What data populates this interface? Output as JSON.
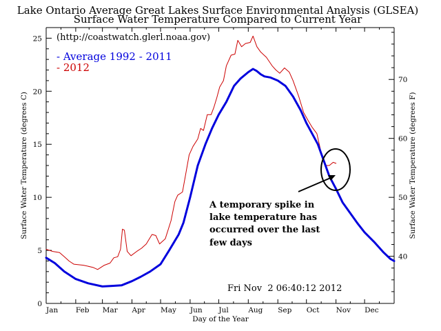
{
  "chart_data": {
    "type": "line",
    "title": "Lake Ontario Average Great Lakes Surface Environmental Analysis (GLSEA)",
    "subtitle": "Surface Water Temperature Compared to Current Year",
    "source": "(http://coastwatch.glerl.noaa.gov)",
    "xlabel": "Day of the Year",
    "ylabel_left": "Surface Water Temperature (degrees C)",
    "ylabel_right": "Surface Water Temperature (degrees F)",
    "xlim": [
      1,
      366
    ],
    "ylim": [
      0,
      26
    ],
    "ylim_right_F": [
      32,
      78.8
    ],
    "x_tick_labels": [
      "Jan",
      "Feb",
      "Mar",
      "Apr",
      "May",
      "Jun",
      "Jul",
      "Aug",
      "Sep",
      "Oct",
      "Nov",
      "Dec"
    ],
    "x_tick_days": [
      1,
      32,
      60,
      91,
      121,
      152,
      182,
      213,
      244,
      274,
      305,
      335
    ],
    "y_ticks_left": [
      0,
      5,
      10,
      15,
      20,
      25
    ],
    "y_ticks_right_F": [
      40,
      50,
      60,
      70
    ],
    "series": [
      {
        "name": "Average 1992 - 2011",
        "color": "#0000dd",
        "points": [
          [
            1,
            4.3
          ],
          [
            10,
            3.8
          ],
          [
            20,
            3.0
          ],
          [
            32,
            2.3
          ],
          [
            45,
            1.9
          ],
          [
            60,
            1.6
          ],
          [
            70,
            1.65
          ],
          [
            80,
            1.7
          ],
          [
            91,
            2.1
          ],
          [
            100,
            2.5
          ],
          [
            110,
            3.0
          ],
          [
            121,
            3.7
          ],
          [
            130,
            5.0
          ],
          [
            140,
            6.5
          ],
          [
            145,
            7.6
          ],
          [
            152,
            10.0
          ],
          [
            160,
            13.0
          ],
          [
            168,
            15.0
          ],
          [
            175,
            16.5
          ],
          [
            182,
            17.8
          ],
          [
            190,
            19.0
          ],
          [
            198,
            20.5
          ],
          [
            205,
            21.2
          ],
          [
            213,
            21.8
          ],
          [
            218,
            22.1
          ],
          [
            222,
            21.9
          ],
          [
            226,
            21.6
          ],
          [
            230,
            21.4
          ],
          [
            236,
            21.3
          ],
          [
            244,
            21.0
          ],
          [
            252,
            20.5
          ],
          [
            260,
            19.5
          ],
          [
            268,
            18.2
          ],
          [
            274,
            17.0
          ],
          [
            280,
            16.0
          ],
          [
            286,
            15.0
          ],
          [
            292,
            13.5
          ],
          [
            298,
            12.0
          ],
          [
            305,
            10.8
          ],
          [
            312,
            9.5
          ],
          [
            320,
            8.5
          ],
          [
            328,
            7.5
          ],
          [
            335,
            6.7
          ],
          [
            345,
            5.8
          ],
          [
            355,
            4.8
          ],
          [
            362,
            4.2
          ],
          [
            366,
            4.0
          ]
        ]
      },
      {
        "name": "2012",
        "color": "#cc0000",
        "points": [
          [
            1,
            5.1
          ],
          [
            8,
            4.9
          ],
          [
            15,
            4.8
          ],
          [
            20,
            4.4
          ],
          [
            25,
            4.0
          ],
          [
            30,
            3.7
          ],
          [
            40,
            3.6
          ],
          [
            50,
            3.4
          ],
          [
            55,
            3.2
          ],
          [
            62,
            3.6
          ],
          [
            68,
            3.8
          ],
          [
            72,
            4.3
          ],
          [
            76,
            4.4
          ],
          [
            79,
            5.1
          ],
          [
            81,
            7.0
          ],
          [
            83,
            6.9
          ],
          [
            86,
            4.9
          ],
          [
            90,
            4.5
          ],
          [
            96,
            4.9
          ],
          [
            101,
            5.2
          ],
          [
            106,
            5.6
          ],
          [
            112,
            6.5
          ],
          [
            116,
            6.4
          ],
          [
            120,
            5.6
          ],
          [
            126,
            6.1
          ],
          [
            132,
            7.8
          ],
          [
            136,
            9.6
          ],
          [
            139,
            10.2
          ],
          [
            144,
            10.5
          ],
          [
            147,
            12.0
          ],
          [
            151,
            14.0
          ],
          [
            155,
            14.8
          ],
          [
            160,
            15.5
          ],
          [
            163,
            16.5
          ],
          [
            166,
            16.3
          ],
          [
            170,
            17.8
          ],
          [
            174,
            17.8
          ],
          [
            177,
            18.5
          ],
          [
            180,
            19.4
          ],
          [
            183,
            20.4
          ],
          [
            187,
            21.0
          ],
          [
            190,
            22.4
          ],
          [
            195,
            23.4
          ],
          [
            199,
            23.5
          ],
          [
            202,
            24.8
          ],
          [
            206,
            24.2
          ],
          [
            210,
            24.5
          ],
          [
            215,
            24.6
          ],
          [
            218,
            25.2
          ],
          [
            222,
            24.2
          ],
          [
            226,
            23.7
          ],
          [
            232,
            23.2
          ],
          [
            238,
            22.4
          ],
          [
            242,
            22.0
          ],
          [
            246,
            21.7
          ],
          [
            251,
            22.2
          ],
          [
            256,
            21.8
          ],
          [
            260,
            21.0
          ],
          [
            266,
            19.5
          ],
          [
            271,
            18.0
          ],
          [
            276,
            17.2
          ],
          [
            280,
            16.6
          ],
          [
            285,
            16.0
          ],
          [
            290,
            14.0
          ],
          [
            294,
            13.0
          ],
          [
            298,
            13.0
          ],
          [
            302,
            13.3
          ],
          [
            305,
            13.2
          ]
        ]
      }
    ],
    "annotations": {
      "callout_lines": [
        "A temporary spike in",
        "lake temperature has",
        "occurred  over the last",
        "few days"
      ],
      "timestamp": "Fri Nov  2 06:40:12 2012"
    }
  },
  "legend": {
    "average_label": "- Average 1992 - 2011",
    "year_label": "- 2012"
  },
  "colors": {
    "average": "#0000dd",
    "current_year": "#cc0000",
    "axes": "#000000",
    "background": "#ffffff"
  }
}
